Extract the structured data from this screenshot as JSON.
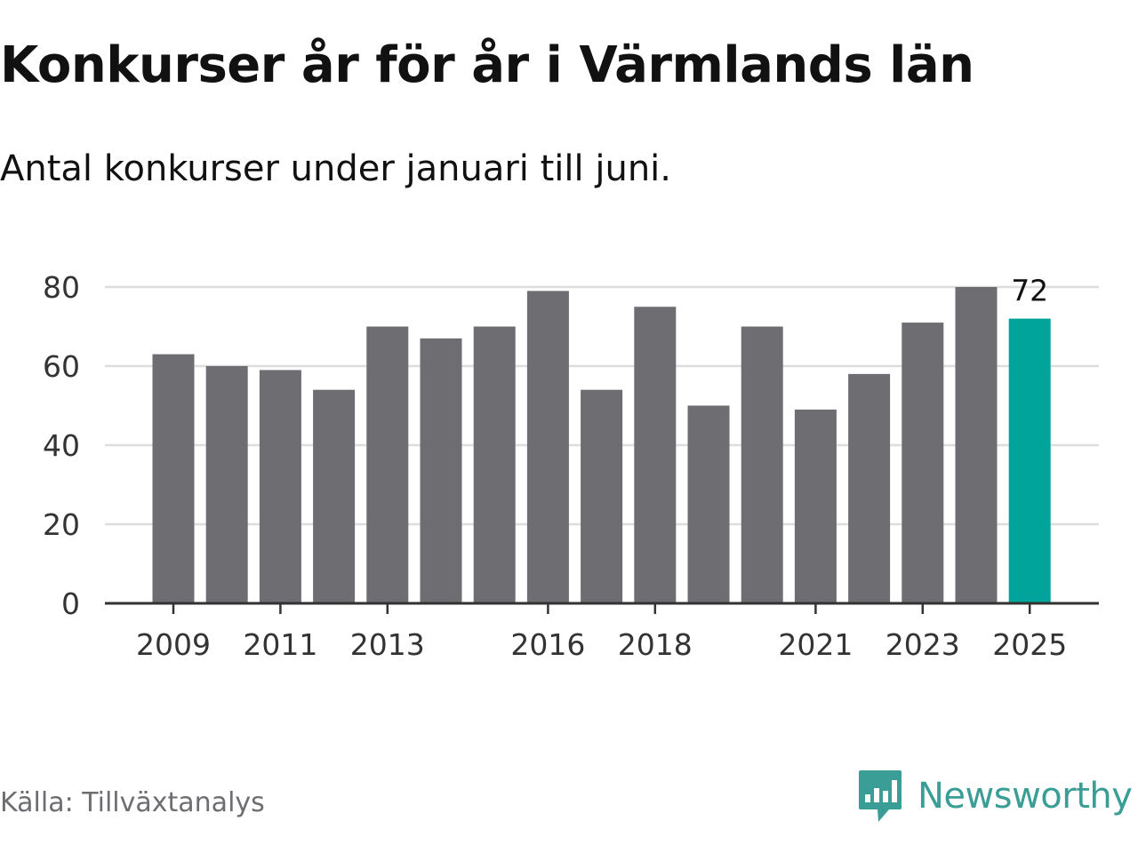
{
  "title": "Konkurser år för år i Värmlands län",
  "subtitle": "Antal konkurser under januari till juni.",
  "source": "Källa: Tillväxtanalys",
  "brand": {
    "name": "Newsworthy",
    "color": "#3a9e96",
    "icon": "newsworthy-logo-icon"
  },
  "colors": {
    "bar": "#6e6d72",
    "highlight": "#00a49a",
    "grid": "#dddddd",
    "axis": "#333333",
    "text": "#333333"
  },
  "chart_data": {
    "type": "bar",
    "categories": [
      "2009",
      "2010",
      "2011",
      "2012",
      "2013",
      "2014",
      "2015",
      "2016",
      "2017",
      "2018",
      "2019",
      "2020",
      "2021",
      "2022",
      "2023",
      "2024",
      "2025"
    ],
    "values": [
      63,
      60,
      59,
      54,
      70,
      67,
      70,
      79,
      54,
      75,
      50,
      70,
      49,
      58,
      71,
      80,
      72
    ],
    "x_tick_labels": [
      "2009",
      "2011",
      "2013",
      "2016",
      "2018",
      "2021",
      "2023",
      "2025"
    ],
    "y_ticks": [
      0,
      20,
      40,
      60,
      80
    ],
    "ylim": [
      0,
      80
    ],
    "highlight_category": "2025",
    "data_labels": [
      {
        "category": "2025",
        "text": "72"
      }
    ],
    "grid": true,
    "legend": "none",
    "xlabel": "",
    "ylabel": ""
  }
}
